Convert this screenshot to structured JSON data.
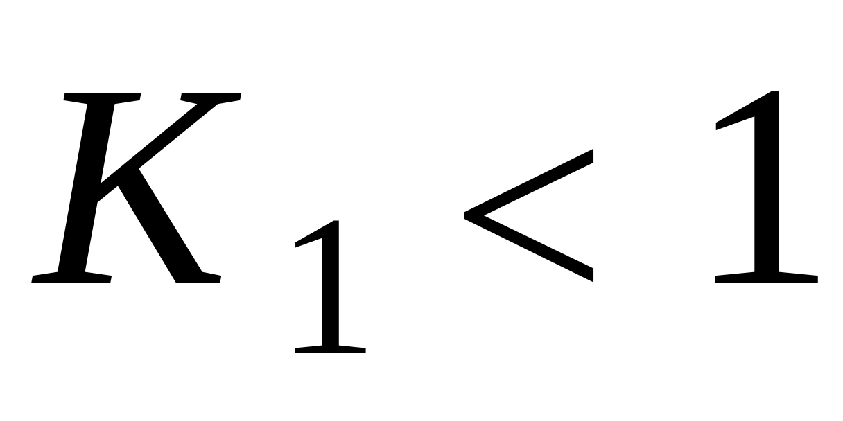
{
  "formula": {
    "variable": "K",
    "subscript": "1",
    "relation": "<",
    "rhs": "1"
  },
  "colors": {
    "background": "#ffffff",
    "text": "#000000"
  }
}
